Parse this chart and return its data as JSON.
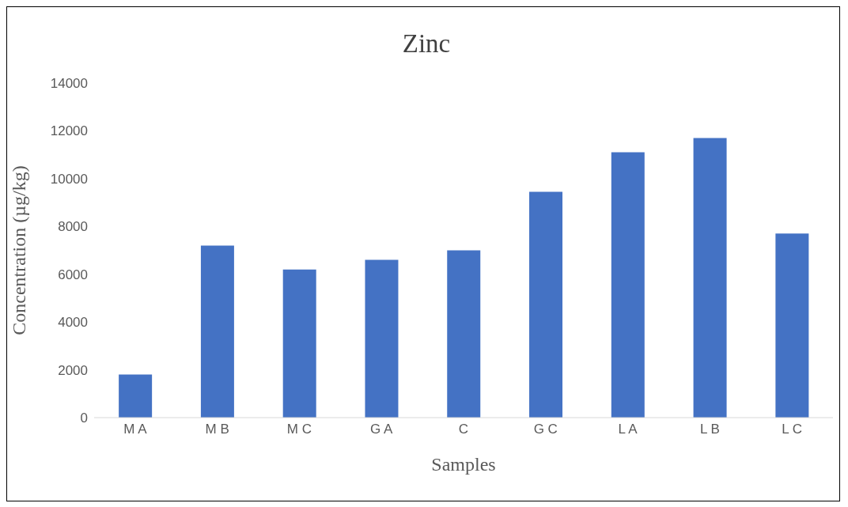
{
  "chart_data": {
    "type": "bar",
    "title": "Zinc",
    "xlabel": "Samples",
    "ylabel": "Concentration (µg/kg)",
    "categories": [
      "M A",
      "M B",
      "M C",
      "G A",
      "C",
      "G C",
      "L A",
      "L B",
      "L C"
    ],
    "values": [
      1800,
      7200,
      6200,
      6600,
      7000,
      9450,
      11100,
      11700,
      7700
    ],
    "color": "#4472c4",
    "ylim": [
      0,
      14000
    ],
    "yticks": [
      0,
      2000,
      4000,
      6000,
      8000,
      10000,
      12000,
      14000
    ],
    "grid": false,
    "legend": false
  }
}
